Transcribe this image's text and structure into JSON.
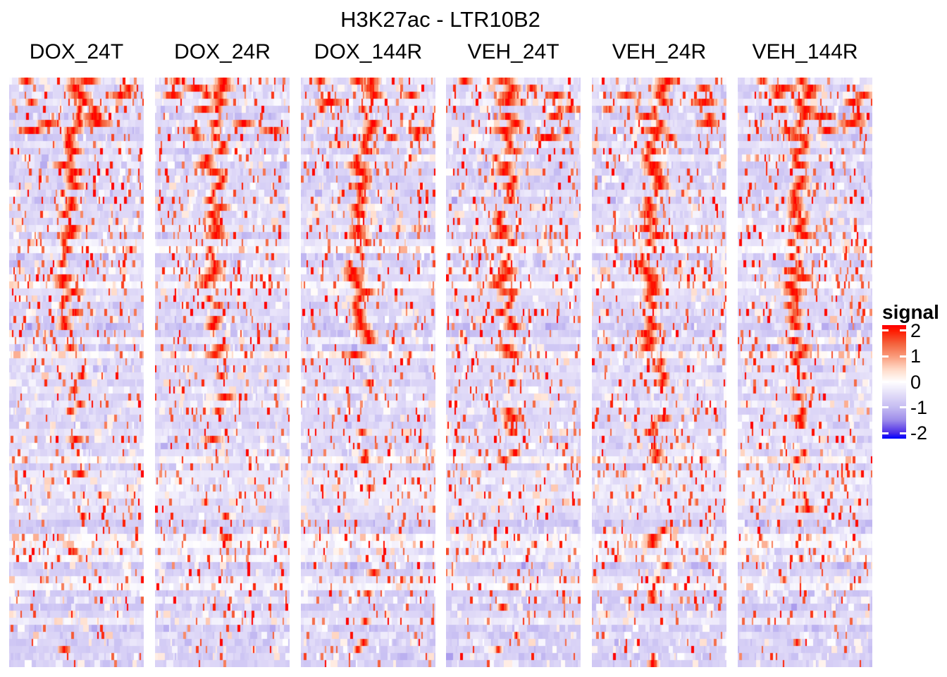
{
  "chart_data": {
    "type": "heatmap",
    "title": "H3K27ac - LTR10B2",
    "panels": [
      "DOX_24T",
      "DOX_24R",
      "DOX_144R",
      "VEH_24T",
      "VEH_24R",
      "VEH_144R"
    ],
    "legend": {
      "title": "signal",
      "ticks": [
        {
          "value": 2,
          "label": "2"
        },
        {
          "value": 1,
          "label": "1"
        },
        {
          "value": 0,
          "label": "0"
        },
        {
          "value": -1,
          "label": "-1"
        },
        {
          "value": -2,
          "label": "-2"
        }
      ],
      "domain": [
        -2.21,
        2.21
      ],
      "position": "right"
    },
    "colorscale": {
      "positive_anchors": [
        [
          0,
          "#FFFFFF"
        ],
        [
          0.5,
          "#FFD9C6"
        ],
        [
          1,
          "#FA9B7B"
        ],
        [
          1.5,
          "#F4623C"
        ],
        [
          2,
          "#FF1A00"
        ],
        [
          2.21,
          "#FF0000"
        ]
      ],
      "negative_anchors": [
        [
          0,
          "#FFFFFF"
        ],
        [
          0.5,
          "#E2DCF8"
        ],
        [
          1,
          "#C5BCF2"
        ],
        [
          1.5,
          "#9E8DEA"
        ],
        [
          2,
          "#4B2CE8"
        ],
        [
          2.21,
          "#0000FF"
        ]
      ],
      "high_color": "#FF0000",
      "mid_color": "#FFFFFF",
      "low_color": "#0000FF"
    },
    "grid": {
      "rows": 84,
      "cols": 96
    },
    "row_order": "rows (individual LTR10B2 loci, shared across all six panels) sorted top-to-bottom by decreasing H3K27ac signal; enriched red signal clusters meander near the panel center in the upper half and become sparse speckles toward the bottom",
    "generation": {
      "seed": 1337,
      "note": "cell values are a procedural approximation of the screenshot's dense per-locus signal texture"
    }
  }
}
